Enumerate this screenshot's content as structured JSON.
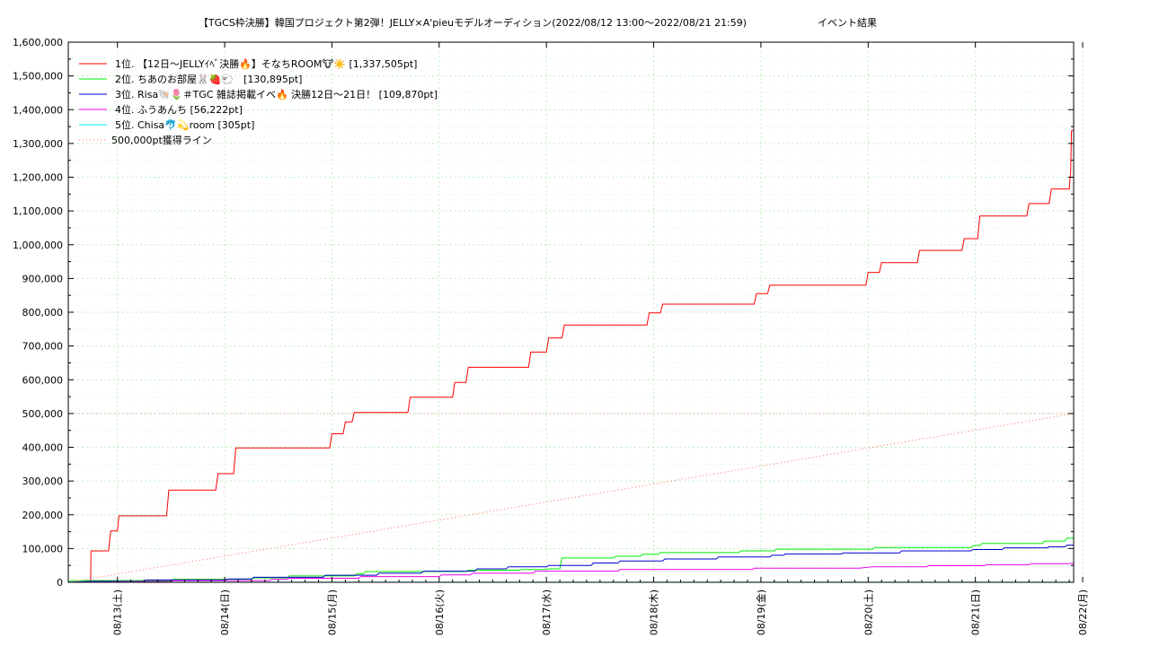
{
  "chart_data": {
    "type": "line",
    "title": "【TGCS枠決勝】韓国プロジェクト第2弾！JELLY×A'pieuモデルオーディション(2022/08/12 13:00〜2022/08/21 21:59)",
    "subtitle": "イベント結果",
    "xlabel": "",
    "ylabel": "",
    "xlim": [
      "2022-08-12 13:00",
      "2022-08-21 21:59"
    ],
    "ylim": [
      0,
      1600000
    ],
    "grid": true,
    "legend_position": "top-left",
    "x_ticks": [
      "08/13(土)",
      "08/14(日)",
      "08/15(月)",
      "08/16(火)",
      "08/17(水)",
      "08/18(木)",
      "08/19(金)",
      "08/20(土)",
      "08/21(日)",
      "08/22(月)"
    ],
    "y_ticks": [
      "0",
      "100,000",
      "200,000",
      "300,000",
      "400,000",
      "500,000",
      "600,000",
      "700,000",
      "800,000",
      "900,000",
      "1,000,000",
      "1,100,000",
      "1,200,000",
      "1,300,000",
      "1,400,000",
      "1,500,000",
      "1,600,000"
    ],
    "series": [
      {
        "name": "1位. 【12日〜JELLYｲﾍﾞ決勝🔥】そなちROOM🐮☀️ [1,337,505pt]",
        "color": "#ff0000",
        "style": "solid",
        "points": [
          [
            "2022-08-12 13:00",
            0
          ],
          [
            "2022-08-12 18:00",
            0
          ],
          [
            "2022-08-12 18:05",
            93000
          ],
          [
            "2022-08-12 22:00",
            93000
          ],
          [
            "2022-08-12 22:30",
            152000
          ],
          [
            "2022-08-13 00:00",
            152000
          ],
          [
            "2022-08-13 00:20",
            197000
          ],
          [
            "2022-08-13 11:00",
            197000
          ],
          [
            "2022-08-13 11:30",
            273000
          ],
          [
            "2022-08-13 22:00",
            273000
          ],
          [
            "2022-08-13 22:30",
            322000
          ],
          [
            "2022-08-14 02:00",
            322000
          ],
          [
            "2022-08-14 02:30",
            398000
          ],
          [
            "2022-08-14 23:30",
            398000
          ],
          [
            "2022-08-15 00:00",
            440000
          ],
          [
            "2022-08-15 02:30",
            440000
          ],
          [
            "2022-08-15 03:00",
            475000
          ],
          [
            "2022-08-15 04:30",
            475000
          ],
          [
            "2022-08-15 05:00",
            503000
          ],
          [
            "2022-08-15 17:00",
            503000
          ],
          [
            "2022-08-15 17:30",
            548000
          ],
          [
            "2022-08-16 03:00",
            548000
          ],
          [
            "2022-08-16 03:30",
            592000
          ],
          [
            "2022-08-16 06:00",
            592000
          ],
          [
            "2022-08-16 06:30",
            637000
          ],
          [
            "2022-08-16 20:00",
            637000
          ],
          [
            "2022-08-16 20:30",
            682000
          ],
          [
            "2022-08-17 00:00",
            682000
          ],
          [
            "2022-08-17 00:30",
            724000
          ],
          [
            "2022-08-17 03:30",
            724000
          ],
          [
            "2022-08-17 04:00",
            762000
          ],
          [
            "2022-08-17 22:30",
            762000
          ],
          [
            "2022-08-17 23:00",
            798000
          ],
          [
            "2022-08-18 01:30",
            798000
          ],
          [
            "2022-08-18 02:00",
            824000
          ],
          [
            "2022-08-18 22:30",
            824000
          ],
          [
            "2022-08-18 23:00",
            855000
          ],
          [
            "2022-08-19 01:30",
            855000
          ],
          [
            "2022-08-19 02:00",
            880000
          ],
          [
            "2022-08-19 23:30",
            880000
          ],
          [
            "2022-08-20 00:00",
            918000
          ],
          [
            "2022-08-20 02:30",
            918000
          ],
          [
            "2022-08-20 03:00",
            947000
          ],
          [
            "2022-08-20 11:00",
            947000
          ],
          [
            "2022-08-20 11:30",
            983000
          ],
          [
            "2022-08-20 21:00",
            983000
          ],
          [
            "2022-08-20 21:30",
            1018000
          ],
          [
            "2022-08-21 00:30",
            1018000
          ],
          [
            "2022-08-21 01:00",
            1085000
          ],
          [
            "2022-08-21 11:30",
            1085000
          ],
          [
            "2022-08-21 12:00",
            1122000
          ],
          [
            "2022-08-21 16:30",
            1122000
          ],
          [
            "2022-08-21 17:00",
            1165000
          ],
          [
            "2022-08-21 21:00",
            1165000
          ],
          [
            "2022-08-21 21:20",
            1220000
          ],
          [
            "2022-08-21 21:30",
            1337505
          ],
          [
            "2022-08-21 21:59",
            1337505
          ]
        ]
      },
      {
        "name": "2位. ちあのお部屋🐰🍓🐑　[130,895pt]",
        "color": "#00ee00",
        "style": "solid",
        "points": [
          [
            "2022-08-12 13:00",
            0
          ],
          [
            "2022-08-12 13:30",
            5000
          ],
          [
            "2022-08-13 12:00",
            5000
          ],
          [
            "2022-08-13 12:30",
            9000
          ],
          [
            "2022-08-14 06:00",
            9000
          ],
          [
            "2022-08-14 06:30",
            13000
          ],
          [
            "2022-08-14 14:00",
            13000
          ],
          [
            "2022-08-14 14:30",
            19000
          ],
          [
            "2022-08-15 05:00",
            19000
          ],
          [
            "2022-08-15 05:30",
            25000
          ],
          [
            "2022-08-15 07:00",
            25000
          ],
          [
            "2022-08-15 07:30",
            32000
          ],
          [
            "2022-08-16 06:00",
            32000
          ],
          [
            "2022-08-16 06:30",
            36000
          ],
          [
            "2022-08-16 18:00",
            36000
          ],
          [
            "2022-08-16 18:30",
            38000
          ],
          [
            "2022-08-17 00:00",
            38000
          ],
          [
            "2022-08-17 00:30",
            40000
          ],
          [
            "2022-08-17 03:00",
            40000
          ],
          [
            "2022-08-17 03:30",
            72000
          ],
          [
            "2022-08-17 15:00",
            72000
          ],
          [
            "2022-08-17 15:30",
            77000
          ],
          [
            "2022-08-17 21:00",
            77000
          ],
          [
            "2022-08-17 21:30",
            83000
          ],
          [
            "2022-08-18 01:00",
            83000
          ],
          [
            "2022-08-18 01:30",
            88000
          ],
          [
            "2022-08-18 19:00",
            88000
          ],
          [
            "2022-08-18 19:30",
            93000
          ],
          [
            "2022-08-19 03:00",
            93000
          ],
          [
            "2022-08-19 03:30",
            98000
          ],
          [
            "2022-08-20 01:00",
            98000
          ],
          [
            "2022-08-20 01:30",
            103000
          ],
          [
            "2022-08-20 23:00",
            103000
          ],
          [
            "2022-08-20 23:30",
            109000
          ],
          [
            "2022-08-21 01:00",
            109000
          ],
          [
            "2022-08-21 01:30",
            115000
          ],
          [
            "2022-08-21 15:00",
            115000
          ],
          [
            "2022-08-21 15:30",
            122000
          ],
          [
            "2022-08-21 20:00",
            122000
          ],
          [
            "2022-08-21 20:30",
            130895
          ],
          [
            "2022-08-21 21:59",
            130895
          ]
        ]
      },
      {
        "name": "3位. Risa🐚🌷＃TGC 雑誌掲載イベ🔥 決勝12日〜21日！ [109,870pt]",
        "color": "#0000cc",
        "style": "solid",
        "points": [
          [
            "2022-08-12 13:00",
            0
          ],
          [
            "2022-08-12 18:00",
            3000
          ],
          [
            "2022-08-13 06:00",
            3000
          ],
          [
            "2022-08-13 06:30",
            7000
          ],
          [
            "2022-08-14 00:00",
            7000
          ],
          [
            "2022-08-14 01:00",
            10000
          ],
          [
            "2022-08-14 06:00",
            10000
          ],
          [
            "2022-08-14 06:30",
            15000
          ],
          [
            "2022-08-14 22:00",
            15000
          ],
          [
            "2022-08-14 22:30",
            21000
          ],
          [
            "2022-08-15 10:00",
            21000
          ],
          [
            "2022-08-15 10:30",
            27000
          ],
          [
            "2022-08-15 20:00",
            27000
          ],
          [
            "2022-08-15 20:30",
            33000
          ],
          [
            "2022-08-16 08:00",
            33000
          ],
          [
            "2022-08-16 08:30",
            40000
          ],
          [
            "2022-08-16 15:00",
            40000
          ],
          [
            "2022-08-16 15:30",
            46000
          ],
          [
            "2022-08-17 00:00",
            46000
          ],
          [
            "2022-08-17 00:30",
            50000
          ],
          [
            "2022-08-17 10:00",
            50000
          ],
          [
            "2022-08-17 10:30",
            57000
          ],
          [
            "2022-08-17 16:00",
            57000
          ],
          [
            "2022-08-17 16:30",
            63000
          ],
          [
            "2022-08-18 02:00",
            63000
          ],
          [
            "2022-08-18 02:30",
            69000
          ],
          [
            "2022-08-18 14:00",
            69000
          ],
          [
            "2022-08-18 14:30",
            75000
          ],
          [
            "2022-08-19 02:00",
            75000
          ],
          [
            "2022-08-19 02:30",
            80000
          ],
          [
            "2022-08-19 05:00",
            80000
          ],
          [
            "2022-08-19 05:30",
            84000
          ],
          [
            "2022-08-19 18:00",
            84000
          ],
          [
            "2022-08-19 18:30",
            87000
          ],
          [
            "2022-08-20 07:00",
            87000
          ],
          [
            "2022-08-20 07:30",
            93000
          ],
          [
            "2022-08-20 23:00",
            93000
          ],
          [
            "2022-08-20 23:30",
            97000
          ],
          [
            "2022-08-21 06:00",
            97000
          ],
          [
            "2022-08-21 06:30",
            102000
          ],
          [
            "2022-08-21 16:00",
            102000
          ],
          [
            "2022-08-21 16:30",
            105000
          ],
          [
            "2022-08-21 20:00",
            105000
          ],
          [
            "2022-08-21 20:30",
            109870
          ],
          [
            "2022-08-21 21:59",
            109870
          ]
        ]
      },
      {
        "name": "4位. ふうあんち [56,222pt]",
        "color": "#ee00ee",
        "style": "solid",
        "points": [
          [
            "2022-08-12 13:00",
            0
          ],
          [
            "2022-08-13 12:00",
            3000
          ],
          [
            "2022-08-13 12:30",
            5000
          ],
          [
            "2022-08-14 10:00",
            5000
          ],
          [
            "2022-08-14 10:30",
            9000
          ],
          [
            "2022-08-14 14:00",
            9000
          ],
          [
            "2022-08-14 14:30",
            12000
          ],
          [
            "2022-08-15 06:00",
            12000
          ],
          [
            "2022-08-15 06:30",
            17000
          ],
          [
            "2022-08-16 00:00",
            17000
          ],
          [
            "2022-08-16 00:30",
            22000
          ],
          [
            "2022-08-16 07:00",
            22000
          ],
          [
            "2022-08-16 07:30",
            27000
          ],
          [
            "2022-08-16 21:00",
            27000
          ],
          [
            "2022-08-16 21:30",
            33000
          ],
          [
            "2022-08-17 16:00",
            33000
          ],
          [
            "2022-08-17 16:30",
            38000
          ],
          [
            "2022-08-18 22:00",
            38000
          ],
          [
            "2022-08-18 22:30",
            42000
          ],
          [
            "2022-08-19 22:00",
            42000
          ],
          [
            "2022-08-20 01:00",
            46000
          ],
          [
            "2022-08-20 13:00",
            46000
          ],
          [
            "2022-08-20 13:30",
            49000
          ],
          [
            "2022-08-21 02:00",
            49000
          ],
          [
            "2022-08-21 02:30",
            52000
          ],
          [
            "2022-08-21 12:00",
            52000
          ],
          [
            "2022-08-21 12:30",
            55000
          ],
          [
            "2022-08-21 21:00",
            55000
          ],
          [
            "2022-08-21 21:30",
            56222
          ],
          [
            "2022-08-21 21:59",
            56222
          ]
        ]
      },
      {
        "name": "5位. Chisa🐬💫room [305pt]",
        "color": "#00eeee",
        "style": "solid",
        "points": [
          [
            "2022-08-12 13:00",
            0
          ],
          [
            "2022-08-12 14:00",
            305
          ],
          [
            "2022-08-21 21:59",
            305
          ]
        ]
      },
      {
        "name": "500,000pt獲得ライン",
        "color": "#ff6666",
        "style": "dotted",
        "points": [
          [
            "2022-08-12 13:00",
            0
          ],
          [
            "2022-08-21 21:59",
            500000
          ]
        ]
      }
    ]
  }
}
